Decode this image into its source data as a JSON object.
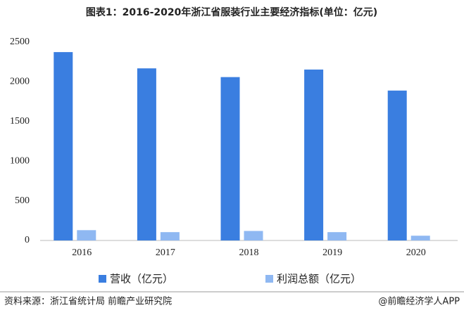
{
  "chart_data": {
    "type": "bar",
    "title": "图表1：2016-2020年浙江省服装行业主要经济指标(单位：亿元)",
    "categories": [
      "2016",
      "2017",
      "2018",
      "2019",
      "2020"
    ],
    "series": [
      {
        "name": "营收（亿元）",
        "color": "#3a7ee0",
        "values": [
          2375,
          2170,
          2060,
          2155,
          1890
        ]
      },
      {
        "name": "利润总额（亿元）",
        "color": "#8fb8f2",
        "values": [
          130,
          105,
          120,
          105,
          60
        ]
      }
    ],
    "ylim": [
      0,
      2500
    ],
    "yticks": [
      0,
      500,
      1000,
      1500,
      2000,
      2500
    ],
    "source": "资料来源：浙江省统计局 前瞻产业研究院",
    "credit": "@前瞻经济学人APP"
  }
}
